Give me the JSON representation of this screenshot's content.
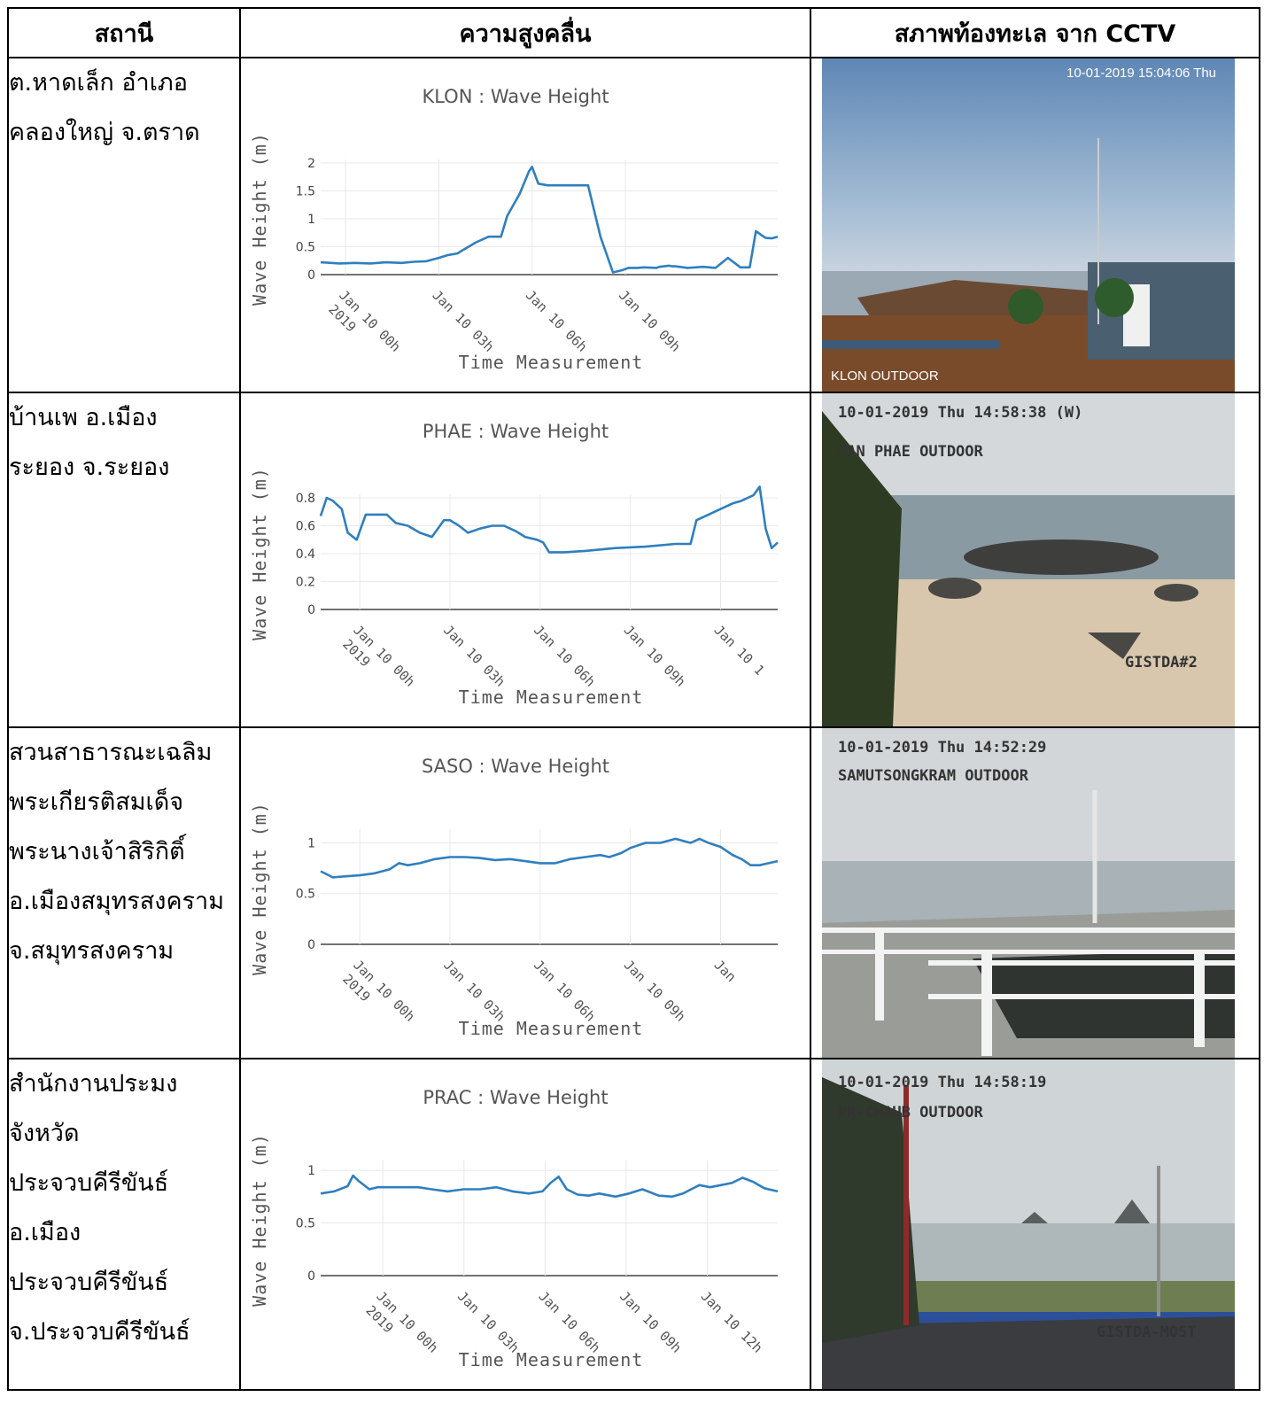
{
  "header": {
    "station": "สถานี",
    "wave": "ความสูงคลื่น",
    "cctv": "สภาพท้องทะเล จาก CCTV"
  },
  "rows": [
    {
      "station_lines": [
        "ต.หาดเล็ก อำเภอ",
        "คลองใหญ่ จ.ตราด"
      ],
      "camera": {
        "timestamp": "10-01-2019 15:04:06 Thu",
        "label": "KLON OUTDOOR",
        "tag": ""
      }
    },
    {
      "station_lines": [
        "บ้านเพ อ.เมือง",
        "ระยอง จ.ระยอง"
      ],
      "camera": {
        "timestamp": "10-01-2019 Thu 14:58:38 (W)",
        "label": "BAN PHAE OUTDOOR",
        "tag": "GISTDA#2"
      }
    },
    {
      "station_lines": [
        "สวนสาธารณะเฉลิม",
        "พระเกียรติสมเด็จ",
        "พระนางเจ้าสิริกิติ์",
        "อ.เมืองสมุทรสงคราม",
        "จ.สมุทรสงคราม"
      ],
      "camera": {
        "timestamp": "10-01-2019 Thu 14:52:29",
        "label": "SAMUTSONGKRAM OUTDOOR",
        "tag": ""
      }
    },
    {
      "station_lines": [
        "สำนักงานประมง",
        "จังหวัด",
        "ประจวบคีรีขันธ์",
        "อ.เมือง",
        "ประจวบคีรีขันธ์",
        "จ.ประจวบคีรีขันธ์"
      ],
      "camera": {
        "timestamp": "10-01-2019 Thu 14:58:19",
        "label": "PR-CHAUB OUTDOOR",
        "tag": "GISTDA-MOST"
      }
    }
  ],
  "chart_data": [
    {
      "type": "line",
      "title": "KLON : Wave Height",
      "xlabel": "Time Measurement",
      "ylabel": "Wave Height (m)",
      "xlim": [
        -0.8,
        13.9
      ],
      "ylim": [
        0,
        2
      ],
      "yticks": [
        0,
        0.5,
        1,
        1.5,
        2
      ],
      "ytick_labels": [
        "0",
        "0.5",
        "1",
        "1.5",
        "2"
      ],
      "xticks": [
        0,
        3,
        6,
        9
      ],
      "xtick_labels": [
        [
          "Jan 10 00h",
          "2019"
        ],
        [
          "Jan 10 03h"
        ],
        [
          "Jan 10 06h"
        ],
        [
          "Jan 10 09h"
        ]
      ],
      "grid": true,
      "series": [
        {
          "x": [
            -0.8,
            -0.2,
            0.3,
            0.8,
            1.3,
            1.8,
            2.2,
            2.6,
            3.0,
            3.3,
            3.6,
            3.8,
            4.2,
            4.6,
            4.9,
            5.0,
            5.2,
            5.6,
            5.9,
            6.0,
            6.2,
            6.5,
            6.9,
            7.4,
            7.8,
            8.2,
            8.6,
            8.9,
            9.0,
            9.1,
            9.4,
            9.6,
            10.0,
            10.1,
            10.4,
            10.5,
            10.6,
            11.0,
            11.5,
            11.9,
            12.3,
            12.7,
            13.0,
            13.2,
            13.5,
            13.7,
            13.9
          ],
          "y": [
            0.22,
            0.2,
            0.21,
            0.2,
            0.22,
            0.21,
            0.23,
            0.24,
            0.3,
            0.35,
            0.38,
            0.45,
            0.58,
            0.68,
            0.68,
            0.68,
            1.05,
            1.45,
            1.85,
            1.93,
            1.63,
            1.6,
            1.6,
            1.6,
            1.6,
            0.68,
            0.04,
            0.08,
            0.1,
            0.12,
            0.12,
            0.13,
            0.12,
            0.14,
            0.16,
            0.15,
            0.15,
            0.12,
            0.14,
            0.12,
            0.3,
            0.13,
            0.13,
            0.78,
            0.66,
            0.65,
            0.68
          ]
        }
      ]
    },
    {
      "type": "line",
      "title": "PHAE : Wave Height",
      "xlabel": "Time Measurement",
      "ylabel": "Wave Height (m)",
      "xlim": [
        -1.3,
        13.9
      ],
      "ylim": [
        0,
        0.8
      ],
      "yticks": [
        0,
        0.2,
        0.4,
        0.6,
        0.8
      ],
      "ytick_labels": [
        "0",
        "0.2",
        "0.4",
        "0.6",
        "0.8"
      ],
      "xticks": [
        0,
        3,
        6,
        9,
        12
      ],
      "xtick_labels": [
        [
          "Jan 10 00h",
          "2019"
        ],
        [
          "Jan 10 03h"
        ],
        [
          "Jan 10 06h"
        ],
        [
          "Jan 10 09h"
        ],
        [
          "Jan 10 1"
        ]
      ],
      "grid": true,
      "series": [
        {
          "x": [
            -1.3,
            -1.1,
            -0.9,
            -0.6,
            -0.4,
            -0.1,
            0.2,
            0.6,
            0.9,
            1.2,
            1.6,
            2.0,
            2.4,
            2.8,
            3.0,
            3.3,
            3.6,
            4.0,
            4.4,
            4.8,
            5.2,
            5.5,
            5.9,
            6.1,
            6.3,
            6.8,
            7.5,
            8.5,
            9.5,
            10.5,
            10.8,
            11.0,
            11.2,
            11.6,
            12.0,
            12.4,
            12.7,
            12.9,
            13.1,
            13.3,
            13.5,
            13.7,
            13.9
          ],
          "y": [
            0.67,
            0.8,
            0.78,
            0.72,
            0.55,
            0.5,
            0.68,
            0.68,
            0.68,
            0.62,
            0.6,
            0.55,
            0.52,
            0.64,
            0.64,
            0.6,
            0.55,
            0.58,
            0.6,
            0.6,
            0.56,
            0.52,
            0.5,
            0.48,
            0.41,
            0.41,
            0.42,
            0.44,
            0.45,
            0.47,
            0.47,
            0.47,
            0.64,
            0.68,
            0.72,
            0.76,
            0.78,
            0.8,
            0.82,
            0.88,
            0.58,
            0.44,
            0.48
          ]
        }
      ]
    },
    {
      "type": "line",
      "title": "SASO : Wave Height",
      "xlabel": "Time Measurement",
      "ylabel": "Wave Height (m)",
      "xlim": [
        -1.3,
        13.9
      ],
      "ylim": [
        0,
        1.1
      ],
      "yticks": [
        0,
        0.5,
        1
      ],
      "ytick_labels": [
        "0",
        "0.5",
        "1"
      ],
      "xticks": [
        0,
        3,
        6,
        9,
        12
      ],
      "xtick_labels": [
        [
          "Jan 10 00h",
          "2019"
        ],
        [
          "Jan 10 03h"
        ],
        [
          "Jan 10 06h"
        ],
        [
          "Jan 10 09h"
        ],
        [
          "Jan"
        ]
      ],
      "grid": true,
      "series": [
        {
          "x": [
            -1.3,
            -0.9,
            -0.5,
            0.0,
            0.5,
            1.0,
            1.3,
            1.6,
            2.0,
            2.5,
            3.0,
            3.5,
            4.0,
            4.5,
            5.0,
            5.5,
            6.0,
            6.5,
            7.0,
            7.5,
            8.0,
            8.3,
            8.7,
            9.0,
            9.5,
            10.0,
            10.5,
            11.0,
            11.3,
            11.6,
            12.0,
            12.4,
            12.7,
            13.0,
            13.3,
            13.6,
            13.9
          ],
          "y": [
            0.72,
            0.66,
            0.67,
            0.68,
            0.7,
            0.74,
            0.8,
            0.78,
            0.8,
            0.84,
            0.86,
            0.86,
            0.85,
            0.83,
            0.84,
            0.82,
            0.8,
            0.8,
            0.84,
            0.86,
            0.88,
            0.86,
            0.9,
            0.95,
            1.0,
            1.0,
            1.04,
            1.0,
            1.04,
            1.0,
            0.96,
            0.88,
            0.84,
            0.78,
            0.78,
            0.8,
            0.82
          ]
        }
      ]
    },
    {
      "type": "line",
      "title": "PRAC : Wave Height",
      "xlabel": "Time Measurement",
      "ylabel": "Wave Height (m)",
      "xlim": [
        -2.3,
        14.6
      ],
      "ylim": [
        0,
        1.06
      ],
      "yticks": [
        0,
        0.5,
        1
      ],
      "ytick_labels": [
        "0",
        "0.5",
        "1"
      ],
      "xticks": [
        0,
        3,
        6,
        9,
        12
      ],
      "xtick_labels": [
        [
          "Jan 10 00h",
          "2019"
        ],
        [
          "Jan 10 03h"
        ],
        [
          "Jan 10 06h"
        ],
        [
          "Jan 10 09h"
        ],
        [
          "Jan 10 12h"
        ]
      ],
      "grid": true,
      "series": [
        {
          "x": [
            -2.3,
            -1.8,
            -1.3,
            -1.1,
            -0.9,
            -0.5,
            -0.2,
            0.3,
            0.8,
            1.3,
            1.8,
            2.4,
            3.0,
            3.6,
            4.2,
            4.8,
            5.4,
            5.9,
            6.2,
            6.5,
            6.8,
            7.2,
            7.6,
            8.0,
            8.6,
            9.1,
            9.6,
            10.2,
            10.7,
            11.1,
            11.4,
            11.7,
            12.1,
            12.5,
            12.9,
            13.3,
            13.7,
            14.1,
            14.6
          ],
          "y": [
            0.78,
            0.8,
            0.85,
            0.95,
            0.9,
            0.82,
            0.84,
            0.84,
            0.84,
            0.84,
            0.82,
            0.8,
            0.82,
            0.82,
            0.84,
            0.8,
            0.78,
            0.8,
            0.88,
            0.94,
            0.82,
            0.77,
            0.76,
            0.78,
            0.75,
            0.78,
            0.82,
            0.76,
            0.75,
            0.78,
            0.82,
            0.86,
            0.84,
            0.86,
            0.88,
            0.93,
            0.89,
            0.83,
            0.8
          ]
        }
      ]
    }
  ]
}
